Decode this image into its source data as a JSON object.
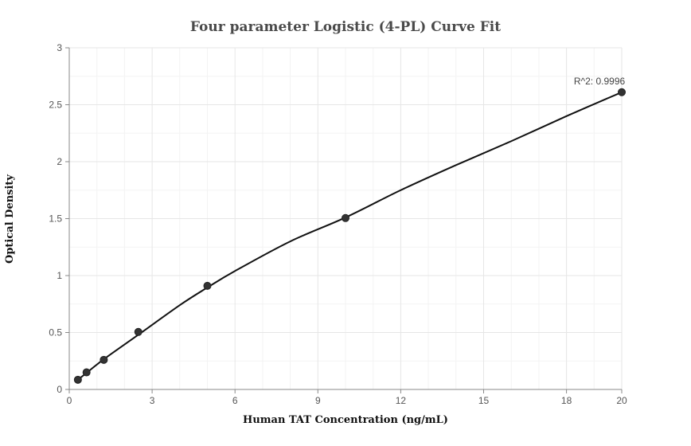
{
  "chart_data": {
    "type": "scatter",
    "title": "Four parameter Logistic (4-PL) Curve Fit",
    "xlabel": "Human TAT Concentration (ng/mL)",
    "ylabel": "Optical Density",
    "xlim": [
      0,
      20
    ],
    "ylim": [
      0,
      3
    ],
    "xticks": [
      0,
      3,
      6,
      9,
      12,
      15,
      18,
      20
    ],
    "yticks": [
      0,
      0.5,
      1,
      1.5,
      2,
      2.5,
      3
    ],
    "xtick_labels": [
      "0",
      "3",
      "6",
      "9",
      "12",
      "15",
      "18",
      "20"
    ],
    "ytick_labels": [
      "0",
      "0.5",
      "1",
      "1.5",
      "2",
      "2.5",
      "3"
    ],
    "grid": true,
    "points": [
      {
        "x": 0.313,
        "y": 0.085
      },
      {
        "x": 0.625,
        "y": 0.15
      },
      {
        "x": 1.25,
        "y": 0.26
      },
      {
        "x": 2.5,
        "y": 0.505
      },
      {
        "x": 5,
        "y": 0.91
      },
      {
        "x": 10,
        "y": 1.505
      },
      {
        "x": 20,
        "y": 2.61
      }
    ],
    "fit_curve": [
      {
        "x": 0.313,
        "y": 0.085
      },
      {
        "x": 0.625,
        "y": 0.145
      },
      {
        "x": 1.25,
        "y": 0.265
      },
      {
        "x": 2.5,
        "y": 0.48
      },
      {
        "x": 4,
        "y": 0.74
      },
      {
        "x": 5,
        "y": 0.895
      },
      {
        "x": 6,
        "y": 1.04
      },
      {
        "x": 8,
        "y": 1.3
      },
      {
        "x": 10,
        "y": 1.51
      },
      {
        "x": 12,
        "y": 1.75
      },
      {
        "x": 14,
        "y": 1.97
      },
      {
        "x": 16,
        "y": 2.18
      },
      {
        "x": 18,
        "y": 2.4
      },
      {
        "x": 20,
        "y": 2.61
      }
    ],
    "annotation": {
      "text": "R^2: 0.9996",
      "x": 20,
      "y": 2.61
    },
    "colors": {
      "line": "#111111",
      "marker": "#333333",
      "grid": "#e6e6e6",
      "minor_grid": "#f3f3f3"
    }
  }
}
